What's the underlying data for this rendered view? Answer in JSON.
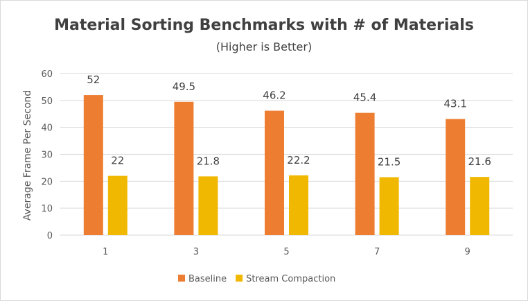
{
  "chart_data": {
    "type": "bar",
    "title": "Material Sorting Benchmarks with # of Materials",
    "subtitle": "(Higher is Better)",
    "xlabel": "",
    "ylabel": "Average Frame Per Second",
    "categories": [
      "1",
      "3",
      "5",
      "7",
      "9"
    ],
    "ylim": [
      0,
      60
    ],
    "yticks": [
      0,
      10,
      20,
      30,
      40,
      50,
      60
    ],
    "grid": true,
    "legend_position": "bottom",
    "series": [
      {
        "name": "Baseline",
        "color": "#ed7d31",
        "values": [
          52,
          49.5,
          46.2,
          45.4,
          43.1
        ]
      },
      {
        "name": "Stream Compaction",
        "color": "#f0b800",
        "values": [
          22,
          21.8,
          22.2,
          21.5,
          21.6
        ]
      }
    ]
  }
}
